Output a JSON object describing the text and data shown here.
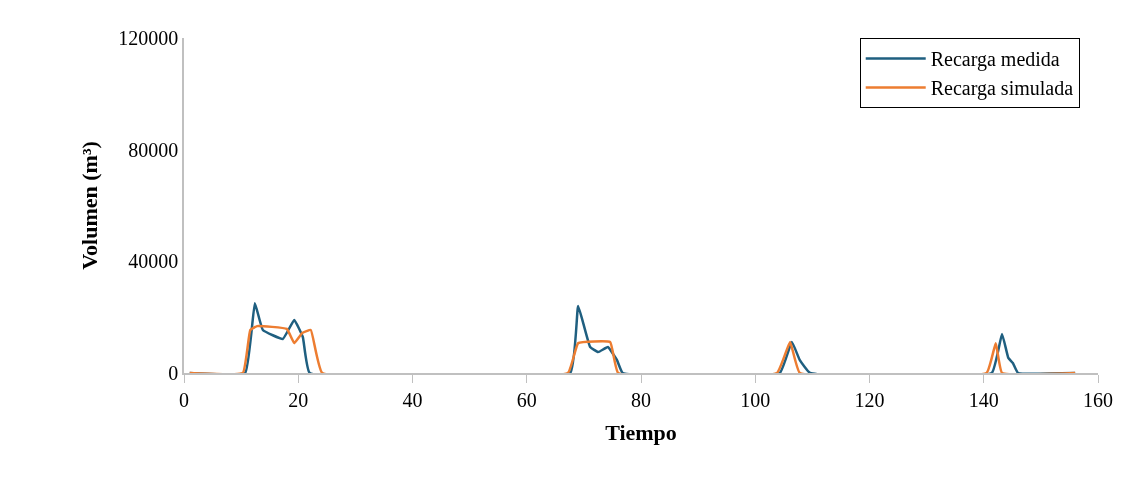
{
  "chart_data": {
    "type": "line",
    "xlabel": "Tiempo",
    "ylabel": "Volumen (m³)",
    "xlim": [
      0,
      160
    ],
    "xticks": [
      0,
      20,
      40,
      60,
      80,
      100,
      120,
      140,
      160
    ],
    "ylim": [
      0,
      120000
    ],
    "yticks": [
      0,
      40000,
      80000,
      120000
    ],
    "legend": "top right",
    "marker": "none",
    "line_style": "solid",
    "series": [
      {
        "name": "Recarga medida",
        "color": "#1f5f80",
        "x": [
          1,
          10.7,
          12.4,
          13.8,
          17.3,
          19.3,
          20.8,
          22,
          67.6,
          69,
          71.1,
          72.5,
          74.2,
          75.8,
          76.8,
          104.3,
          106.4,
          107.8,
          109.6,
          141.4,
          143.2,
          144.3,
          145.1,
          146,
          156
        ],
        "values": [
          0,
          0,
          25000,
          15400,
          12200,
          19000,
          12900,
          0,
          0,
          24000,
          9300,
          7500,
          9300,
          4600,
          0,
          0,
          11100,
          4600,
          0,
          0,
          14000,
          5400,
          3600,
          0,
          0
        ]
      },
      {
        "name": "Recarga simulada",
        "color": "#ed7d31",
        "x": [
          1,
          10.3,
          11.6,
          12.8,
          18,
          19.3,
          20.7,
          22.2,
          24.2,
          67.2,
          69,
          74.6,
          76,
          103.8,
          106.1,
          107.8,
          140.5,
          142.1,
          143.2,
          156
        ],
        "values": [
          0,
          0,
          15400,
          16800,
          15800,
          10700,
          14300,
          15400,
          0,
          0,
          10700,
          11100,
          0,
          0,
          11100,
          0,
          0,
          10700,
          0,
          0
        ]
      }
    ]
  }
}
